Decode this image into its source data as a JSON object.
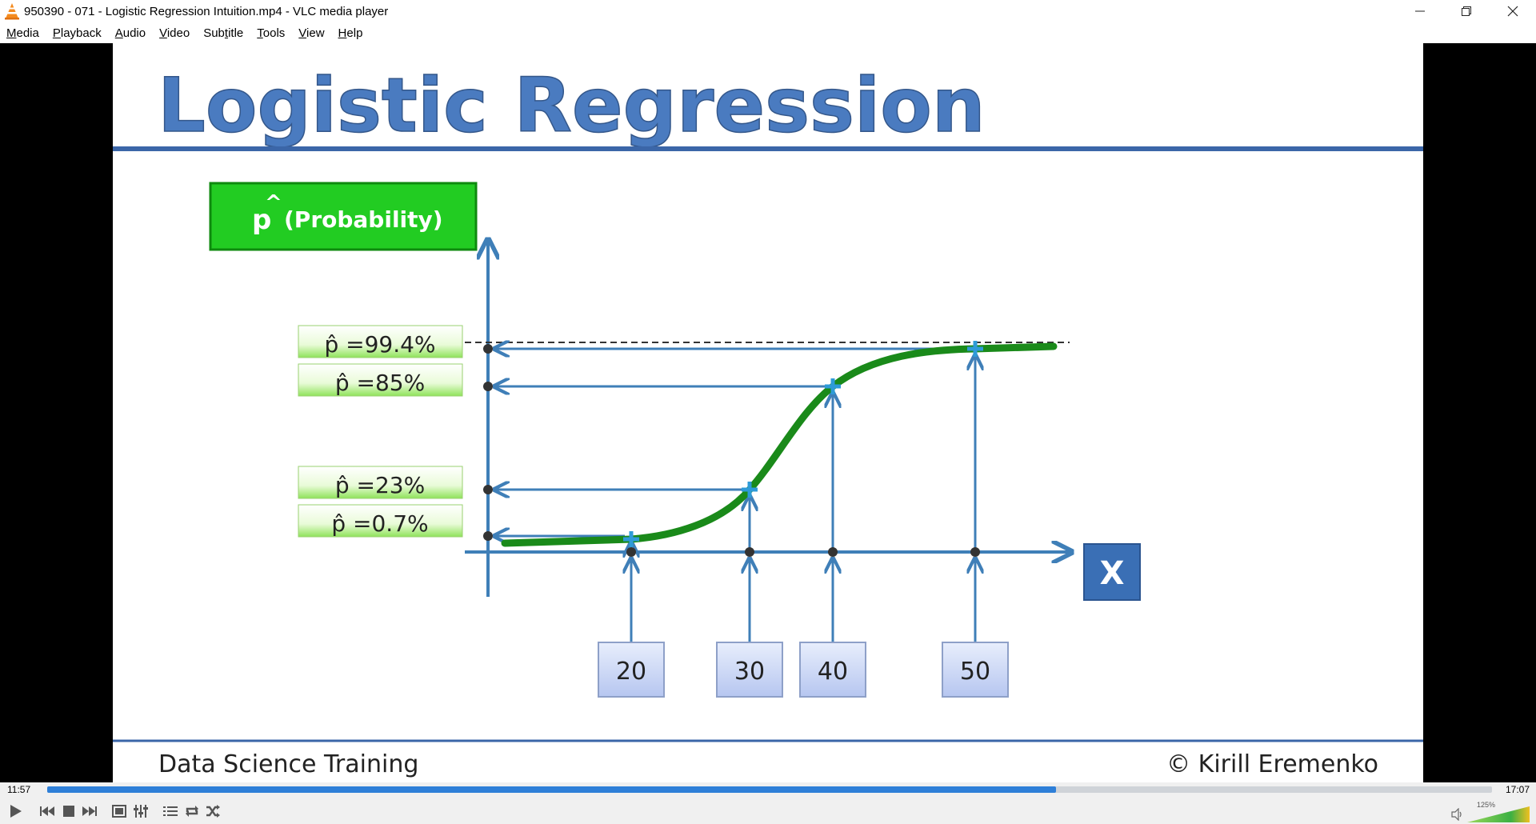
{
  "window": {
    "title": "950390 - 071 - Logistic Regression Intuition.mp4 - VLC media player",
    "controls": [
      "minimize-icon",
      "restore-icon",
      "close-icon"
    ]
  },
  "menu": [
    {
      "label": "Media",
      "key": "M",
      "rest": "edia"
    },
    {
      "label": "Playback",
      "key": "P",
      "rest": "layback"
    },
    {
      "label": "Audio",
      "key": "A",
      "rest": "udio"
    },
    {
      "label": "Video",
      "key": "V",
      "rest": "ideo"
    },
    {
      "label": "Subtitle",
      "key": "S",
      "pre": "Sub",
      "mid": "t",
      "rest": "itle"
    },
    {
      "label": "Tools",
      "key": "T",
      "rest": "ools"
    },
    {
      "label": "View",
      "key": "V",
      "rest": "iew"
    },
    {
      "label": "Help",
      "key": "H",
      "rest": "elp"
    }
  ],
  "slide": {
    "title": "Logistic Regression",
    "y_axis_label_hat": "p",
    "y_axis_label_text": "(Probability)",
    "x_axis_label": "X",
    "p_labels": [
      "p̂ =99.4%",
      "p̂ =85%",
      "p̂ =23%",
      "p̂ =0.7%"
    ],
    "p_values": [
      99.4,
      85,
      23,
      0.7
    ],
    "x_values": [
      "20",
      "30",
      "40",
      "50"
    ],
    "footer_left": "Data Science Training",
    "footer_right": "© Kirill Eremenko",
    "colors": {
      "title": "#4a7bc0",
      "green_box": "#22cc22",
      "curve": "#1a8a1a",
      "arrow": "#3f7fb8",
      "x_box": "#3a6fb5"
    }
  },
  "player": {
    "elapsed": "11:57",
    "total": "17:07",
    "progress_fraction": 0.698,
    "volume_label": "125%",
    "volume_level": 1.25,
    "buttons": [
      "play-icon",
      "prev-icon",
      "stop-icon",
      "next-icon",
      "fullscreen-icon",
      "extended-settings-icon",
      "playlist-icon",
      "loop-icon",
      "shuffle-icon"
    ]
  }
}
